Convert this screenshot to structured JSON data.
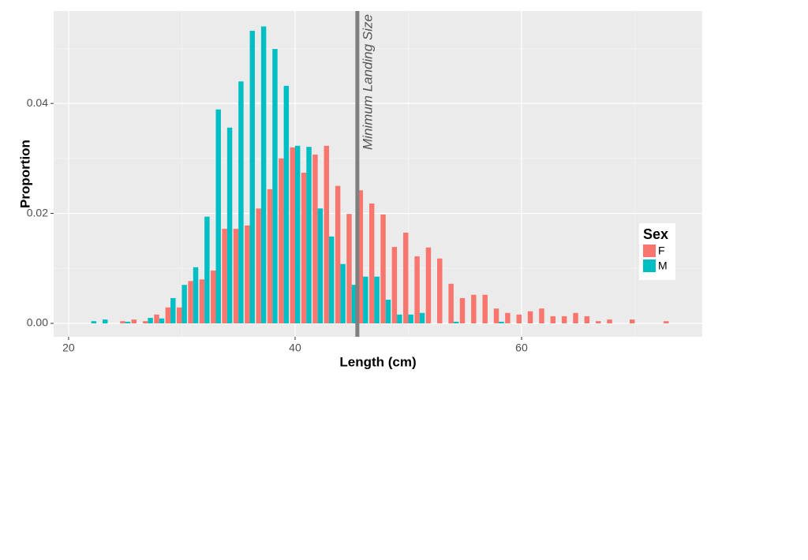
{
  "chart_data": {
    "type": "bar",
    "xlabel": "Length (cm)",
    "ylabel": "Proportion",
    "x": [
      22,
      23,
      24,
      25,
      26,
      27,
      28,
      29,
      30,
      31,
      32,
      33,
      34,
      35,
      36,
      37,
      38,
      39,
      40,
      41,
      42,
      43,
      44,
      45,
      46,
      47,
      48,
      49,
      50,
      51,
      52,
      53,
      54,
      55,
      56,
      57,
      58,
      59,
      60,
      61,
      62,
      63,
      64,
      65,
      66,
      67,
      68,
      69,
      70,
      71,
      72,
      73
    ],
    "series": [
      {
        "name": "F",
        "color": "#f8766d",
        "values": [
          null,
          null,
          null,
          0.0004,
          0.0007,
          0.0004,
          0.0016,
          0.0029,
          0.0029,
          0.0077,
          0.008,
          0.0096,
          0.0172,
          0.0172,
          0.0178,
          0.0209,
          0.0244,
          0.03,
          0.032,
          0.0274,
          0.0307,
          0.0323,
          0.025,
          0.0199,
          0.0242,
          0.0218,
          0.0198,
          0.0139,
          0.0165,
          0.0122,
          0.0138,
          0.0118,
          0.0072,
          0.0046,
          0.0052,
          0.0052,
          0.0027,
          0.0019,
          0.0016,
          0.0022,
          0.0027,
          0.0013,
          0.0013,
          0.0019,
          0.0013,
          0.0004,
          0.0007,
          null,
          0.0007,
          null,
          null,
          0.0004
        ]
      },
      {
        "name": "M",
        "color": "#00bfc4",
        "values": [
          0.0004,
          0.0007,
          null,
          0.0003,
          null,
          0.001,
          0.0009,
          0.0046,
          0.007,
          0.0102,
          0.0194,
          0.0389,
          0.0356,
          0.044,
          0.0532,
          0.054,
          0.0499,
          0.0432,
          0.0323,
          0.0321,
          0.0209,
          0.0158,
          0.0108,
          0.007,
          0.0085,
          0.0085,
          0.0043,
          0.0016,
          0.0016,
          0.0019,
          null,
          null,
          0.0003,
          null,
          null,
          null,
          0.0003,
          null,
          null,
          null,
          null,
          null,
          null,
          null,
          null,
          null,
          null,
          null,
          null,
          null,
          null,
          null
        ]
      }
    ],
    "xlim": [
      18.68,
      75.96
    ],
    "ylim": [
      -0.00244,
      0.0568
    ],
    "xticks": [
      20,
      40,
      60
    ],
    "xminor": [
      30,
      50,
      70
    ],
    "yticks": [
      {
        "value": 0,
        "label": "0.00"
      },
      {
        "value": 0.02,
        "label": "0.02"
      },
      {
        "value": 0.04,
        "label": "0.04"
      }
    ],
    "yminor": [
      0.01,
      0.03,
      0.05
    ],
    "grid": true,
    "legend_title": "Sex",
    "legend": "right",
    "vline": {
      "x": 45.5,
      "label": "Minimum Landing Size",
      "color": "#7f7f7f"
    }
  }
}
